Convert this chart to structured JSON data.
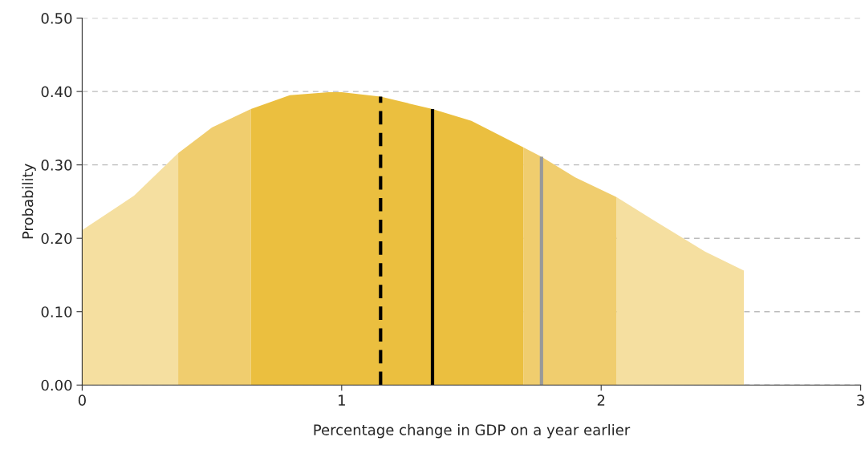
{
  "chart_data": {
    "type": "area",
    "xlabel": "Percentage change in GDP on a year earlier",
    "ylabel": "Probability",
    "xlim": [
      0,
      3
    ],
    "xticks": [
      0,
      1,
      2,
      3
    ],
    "ylim": [
      0,
      0.5
    ],
    "yticks": [
      {
        "value": 0,
        "label": "0.00"
      },
      {
        "value": 0.1,
        "label": "0.10"
      },
      {
        "value": 0.2,
        "label": "0.20"
      },
      {
        "value": 0.3,
        "label": "0.30"
      },
      {
        "value": 0.4,
        "label": "0.40"
      },
      {
        "value": 0.5,
        "label": "0.50"
      }
    ],
    "grid": "y",
    "legend": false,
    "series": [
      {
        "color": "#f5dfa0",
        "x": [
          0,
          0.2,
          0.37
        ],
        "values": [
          0.211,
          0.258,
          0.316
        ]
      },
      {
        "color": "#f0cd6e",
        "x": [
          0.37,
          0.5,
          0.65
        ],
        "values": [
          0.316,
          0.351,
          0.376
        ]
      },
      {
        "color": "#ebbf3f",
        "x": [
          0.65,
          0.8,
          0.95,
          1.0,
          1.15,
          1.35,
          1.5,
          1.7
        ],
        "values": [
          0.376,
          0.395,
          0.399,
          0.399,
          0.393,
          0.376,
          0.36,
          0.324
        ]
      },
      {
        "color": "#f0cd6e",
        "x": [
          1.7,
          1.77,
          1.9,
          2.06
        ],
        "values": [
          0.324,
          0.311,
          0.283,
          0.256
        ]
      },
      {
        "color": "#f5dfa0",
        "x": [
          2.06,
          2.2,
          2.4,
          2.55
        ],
        "values": [
          0.256,
          0.225,
          0.182,
          0.156
        ]
      }
    ],
    "ref_lines": [
      {
        "axis": "x",
        "value": 1.15,
        "color": "#000000",
        "line_style": "dashed"
      },
      {
        "axis": "x",
        "value": 1.35,
        "color": "#000000",
        "line_style": "solid"
      },
      {
        "axis": "x",
        "value": 1.77,
        "color": "#999999",
        "line_style": "solid"
      }
    ]
  }
}
